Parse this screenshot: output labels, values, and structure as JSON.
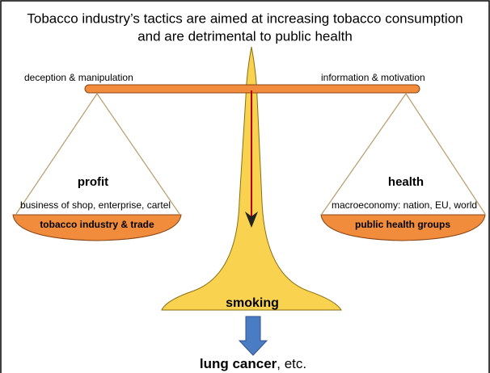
{
  "title": {
    "line1": "Tobacco industry’s tactics are aimed at increasing tobacco consumption",
    "line2": "and are detrimental to public health"
  },
  "beam": {
    "left_label": "deception & manipulation",
    "right_label": "information & motivation"
  },
  "left_pan": {
    "heading": "profit",
    "subtitle": "business of shop, enterprise, cartel",
    "label": "tobacco industry & trade"
  },
  "right_pan": {
    "heading": "health",
    "subtitle": "macroeconomy: nation, EU, world",
    "label": "public health groups"
  },
  "base": {
    "label": "smoking"
  },
  "outcome": {
    "bold": "lung cancer",
    "rest": ", etc."
  }
}
